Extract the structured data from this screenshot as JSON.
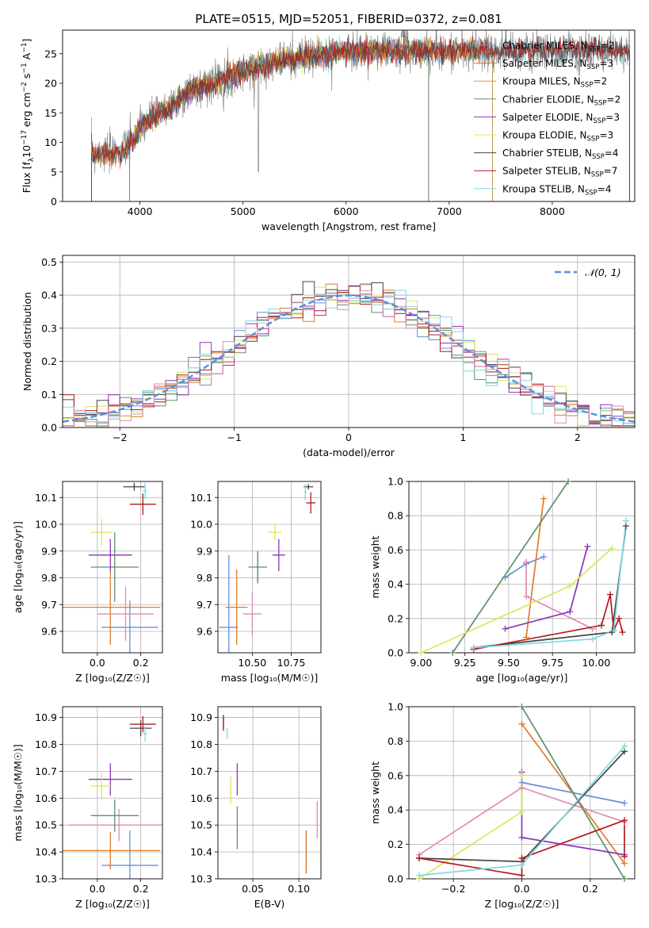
{
  "figure_title": "PLATE=0515, MJD=52051, FIBERID=0372, z=0.081",
  "colors": {
    "Chabrier MILES": "#6a8fd6",
    "Salpeter MILES": "#e07b2a",
    "Kroupa MILES": "#d99a3a",
    "Chabrier ELODIE": "#5f8f6a",
    "Salpeter ELODIE": "#8e35b5",
    "Kroupa ELODIE": "#d7e85a",
    "Chabrier STELIB": "#444444",
    "Salpeter STELIB": "#b01b1b",
    "Kroupa STELIB": "#7fd8df",
    "pink": "#e28ab8",
    "gaussian": "#5b8fd6",
    "grid": "#b0b0b0"
  },
  "chart_data": [
    {
      "id": "spectrum",
      "type": "line",
      "title": "PLATE=0515, MJD=52051, FIBERID=0372, z=0.081",
      "xlabel": "wavelength [Angstrom, rest frame]",
      "ylabel_main": "Flux [f",
      "ylabel_sub": "λ",
      "ylabel_tail": "10",
      "ylabel_sup1": "−17",
      "ylabel_mid": " erg cm",
      "ylabel_sup2": "−2",
      "ylabel_mid2": " s",
      "ylabel_sup3": "−1",
      "ylabel_mid3": " A",
      "ylabel_sup4": "−1",
      "ylabel_end": "]",
      "xlim": [
        3250,
        8800
      ],
      "ylim": [
        0,
        29
      ],
      "xticks": [
        4000,
        5000,
        6000,
        7000,
        8000
      ],
      "yticks": [
        0,
        5,
        10,
        15,
        20,
        25
      ],
      "grid": false,
      "legend_position": "top-right",
      "continuum_x": [
        3530,
        3700,
        3850,
        3950,
        4000,
        4100,
        4200,
        4300,
        4500,
        4700,
        4900,
        5000,
        5200,
        5400,
        5600,
        5800,
        6000,
        6200,
        6400,
        6600,
        6800,
        7000,
        7200,
        7400,
        7600,
        8000,
        8400,
        8750
      ],
      "continuum_y": [
        8,
        8,
        8.5,
        11,
        12.5,
        14,
        15,
        16,
        19,
        20,
        21.5,
        22,
        23,
        24,
        24.5,
        25,
        25.5,
        25.5,
        25.5,
        25.5,
        25.5,
        25.5,
        25.5,
        25.5,
        25.5,
        25.5,
        25.5,
        25.5
      ],
      "series": [
        {
          "name": "Chabrier MILES",
          "nssp": "2"
        },
        {
          "name": "Salpeter MILES",
          "nssp": "3"
        },
        {
          "name": "Kroupa MILES",
          "nssp": "2"
        },
        {
          "name": "Chabrier ELODIE",
          "nssp": "2"
        },
        {
          "name": "Salpeter ELODIE",
          "nssp": "3"
        },
        {
          "name": "Kroupa ELODIE",
          "nssp": "3"
        },
        {
          "name": "Chabrier STELIB",
          "nssp": "4"
        },
        {
          "name": "Salpeter STELIB",
          "nssp": "7"
        },
        {
          "name": "Kroupa STELIB",
          "nssp": "4"
        }
      ]
    },
    {
      "id": "residuals",
      "type": "line",
      "xlabel": "(data-model)/error",
      "ylabel": "Normed distribution",
      "xlim": [
        -2.5,
        2.5
      ],
      "ylim": [
        0,
        0.52
      ],
      "xticks": [
        -2,
        -1,
        0,
        1,
        2
      ],
      "yticks": [
        0.0,
        0.1,
        0.2,
        0.3,
        0.4,
        0.5
      ],
      "grid": true,
      "legend_position": "top-right",
      "gaussian_label": "𝒩(0, 1)",
      "bin_width": 0.1,
      "bin_start": -2.5
    },
    {
      "id": "age_vs_Z",
      "type": "scatter",
      "xlabel": "Z [log₁₀(Z/Z☉)]",
      "ylabel": "age  [log₁₀(age/yr)]",
      "xlim": [
        -0.16,
        0.3
      ],
      "ylim": [
        9.52,
        10.16
      ],
      "xticks": [
        0.0,
        0.2
      ],
      "yticks": [
        9.6,
        9.7,
        9.8,
        9.9,
        10.0,
        10.1
      ],
      "grid": true,
      "points": [
        {
          "s": "Chabrier MILES",
          "x": 0.15,
          "y": 9.615,
          "xe": 0.13,
          "ye": 0.1
        },
        {
          "s": "Salpeter MILES",
          "x": 0.06,
          "y": 9.69,
          "xe": 0.23,
          "ye": 0.14
        },
        {
          "s": "pink",
          "x": 0.13,
          "y": 9.665,
          "xe": 0.13,
          "ye": 0.1
        },
        {
          "s": "Chabrier ELODIE",
          "x": 0.08,
          "y": 9.84,
          "xe": 0.11,
          "ye": 0.13
        },
        {
          "s": "Salpeter ELODIE",
          "x": 0.06,
          "y": 9.885,
          "xe": 0.1,
          "ye": 0.06
        },
        {
          "s": "Kroupa ELODIE",
          "x": 0.02,
          "y": 9.97,
          "xe": 0.05,
          "ye": 0.05
        },
        {
          "s": "Chabrier STELIB",
          "x": 0.17,
          "y": 10.14,
          "xe": 0.05,
          "ye": 0.015
        },
        {
          "s": "Salpeter STELIB",
          "x": 0.21,
          "y": 10.075,
          "xe": 0.06,
          "ye": 0.04
        },
        {
          "s": "Kroupa STELIB",
          "x": 0.22,
          "y": 10.125,
          "xe": 0.01,
          "ye": 0.03
        }
      ]
    },
    {
      "id": "age_vs_mass",
      "type": "scatter",
      "xlabel": "mass [log₁₀(M/M☉)]",
      "ylabel": "",
      "xlim": [
        10.28,
        10.94
      ],
      "ylim": [
        9.52,
        10.16
      ],
      "xticks": [
        10.5,
        10.75
      ],
      "yticks": [
        9.6,
        9.7,
        9.8,
        9.9,
        10.0,
        10.1
      ],
      "grid": true,
      "points": [
        {
          "s": "Chabrier MILES",
          "x": 10.35,
          "y": 9.615,
          "xe": 0.06,
          "ye": 0.27
        },
        {
          "s": "Salpeter MILES",
          "x": 10.4,
          "y": 9.69,
          "xe": 0.07,
          "ye": 0.14
        },
        {
          "s": "pink",
          "x": 10.5,
          "y": 9.665,
          "xe": 0.06,
          "ye": 0.08
        },
        {
          "s": "Chabrier ELODIE",
          "x": 10.535,
          "y": 9.84,
          "xe": 0.06,
          "ye": 0.06
        },
        {
          "s": "Chabrier ELODIE",
          "x": 10.535,
          "y": 9.84,
          "xe": 0.0,
          "ye": 0.06
        },
        {
          "s": "Salpeter ELODIE",
          "x": 10.67,
          "y": 9.885,
          "xe": 0.04,
          "ye": 0.06
        },
        {
          "s": "Kroupa ELODIE",
          "x": 10.645,
          "y": 9.97,
          "xe": 0.04,
          "ye": 0.03
        },
        {
          "s": "Chabrier STELIB",
          "x": 10.86,
          "y": 10.14,
          "xe": 0.03,
          "ye": 0.01
        },
        {
          "s": "Salpeter STELIB",
          "x": 10.875,
          "y": 10.08,
          "xe": 0.03,
          "ye": 0.04
        },
        {
          "s": "Kroupa STELIB",
          "x": 10.84,
          "y": 10.12,
          "xe": 0.01,
          "ye": 0.03
        }
      ]
    },
    {
      "id": "mass_weight_vs_age",
      "type": "line",
      "xlabel": "age  [log₁₀(age/yr)]",
      "ylabel": "mass weight",
      "xlim": [
        8.93,
        10.22
      ],
      "ylim": [
        0,
        1
      ],
      "xticks": [
        9.0,
        9.25,
        9.5,
        9.75,
        10.0
      ],
      "yticks": [
        0.0,
        0.2,
        0.4,
        0.6,
        0.8,
        1.0
      ],
      "grid": true,
      "series": [
        {
          "s": "Chabrier MILES",
          "x": [
            9.48,
            9.6,
            9.7
          ],
          "y": [
            0.44,
            0.52,
            0.56
          ]
        },
        {
          "s": "Salpeter MILES",
          "x": [
            9.6,
            9.7
          ],
          "y": [
            0.09,
            0.9
          ]
        },
        {
          "s": "pink",
          "x": [
            9.6,
            9.6,
            9.98
          ],
          "y": [
            0.53,
            0.33,
            0.14
          ]
        },
        {
          "s": "Chabrier ELODIE",
          "x": [
            9.18,
            9.84
          ],
          "y": [
            0.0,
            1.0
          ]
        },
        {
          "s": "Salpeter ELODIE",
          "x": [
            9.48,
            9.85,
            9.95
          ],
          "y": [
            0.14,
            0.24,
            0.62
          ]
        },
        {
          "s": "Kroupa ELODIE",
          "x": [
            9.0,
            9.85,
            10.09
          ],
          "y": [
            0.0,
            0.39,
            0.61
          ]
        },
        {
          "s": "Chabrier STELIB",
          "x": [
            9.3,
            10.09,
            10.17
          ],
          "y": [
            0.03,
            0.12,
            0.74
          ]
        },
        {
          "s": "Salpeter STELIB",
          "x": [
            9.3,
            10.03,
            10.08,
            10.1,
            10.13,
            10.15
          ],
          "y": [
            0.02,
            0.16,
            0.34,
            0.13,
            0.2,
            0.12
          ]
        },
        {
          "s": "Kroupa STELIB",
          "x": [
            9.3,
            9.98,
            10.1,
            10.17
          ],
          "y": [
            0.03,
            0.08,
            0.13,
            0.77
          ]
        }
      ]
    },
    {
      "id": "mass_vs_Z",
      "type": "scatter",
      "xlabel": "Z [log₁₀(Z/Z☉)]",
      "ylabel": "mass [log₁₀(M/M☉)]",
      "xlim": [
        -0.16,
        0.3
      ],
      "ylim": [
        10.3,
        10.94
      ],
      "xticks": [
        0.0,
        0.2
      ],
      "yticks": [
        10.3,
        10.4,
        10.5,
        10.6,
        10.7,
        10.8,
        10.9
      ],
      "grid": true,
      "points": [
        {
          "s": "Chabrier MILES",
          "x": 0.15,
          "y": 10.35,
          "xe": 0.13,
          "ye": 0.13
        },
        {
          "s": "Salpeter MILES",
          "x": 0.06,
          "y": 10.405,
          "xe": 0.23,
          "ye": 0.07
        },
        {
          "s": "pink",
          "x": 0.1,
          "y": 10.5,
          "xe": 0.23,
          "ye": 0.06
        },
        {
          "s": "Chabrier ELODIE",
          "x": 0.08,
          "y": 10.535,
          "xe": 0.11,
          "ye": 0.06
        },
        {
          "s": "Salpeter ELODIE",
          "x": 0.06,
          "y": 10.67,
          "xe": 0.1,
          "ye": 0.06
        },
        {
          "s": "Kroupa ELODIE",
          "x": 0.02,
          "y": 10.645,
          "xe": 0.05,
          "ye": 0.05
        },
        {
          "s": "Chabrier STELIB",
          "x": 0.2,
          "y": 10.86,
          "xe": 0.05,
          "ye": 0.03
        },
        {
          "s": "Salpeter STELIB",
          "x": 0.21,
          "y": 10.875,
          "xe": 0.06,
          "ye": 0.03
        },
        {
          "s": "Kroupa STELIB",
          "x": 0.22,
          "y": 10.84,
          "xe": 0.01,
          "ye": 0.03
        }
      ]
    },
    {
      "id": "mass_vs_ebv",
      "type": "scatter",
      "xlabel": "E(B-V)",
      "ylabel": "",
      "xlim": [
        0.012,
        0.124
      ],
      "ylim": [
        10.3,
        10.94
      ],
      "xticks": [
        0.05,
        0.1
      ],
      "yticks": [
        10.3,
        10.4,
        10.5,
        10.6,
        10.7,
        10.8,
        10.9
      ],
      "grid": true,
      "points": [
        {
          "s": "Chabrier MILES",
          "x": 0.108,
          "y": 10.4,
          "xe": 0,
          "ye": 0.08
        },
        {
          "s": "Salpeter MILES",
          "x": 0.108,
          "y": 10.4,
          "xe": 0,
          "ye": 0.08
        },
        {
          "s": "pink",
          "x": 0.12,
          "y": 10.52,
          "xe": 0,
          "ye": 0.07
        },
        {
          "s": "Chabrier ELODIE",
          "x": 0.033,
          "y": 10.49,
          "xe": 0,
          "ye": 0.08
        },
        {
          "s": "Salpeter ELODIE",
          "x": 0.033,
          "y": 10.67,
          "xe": 0,
          "ye": 0.06
        },
        {
          "s": "Kroupa ELODIE",
          "x": 0.026,
          "y": 10.63,
          "xe": 0,
          "ye": 0.05
        },
        {
          "s": "Chabrier STELIB",
          "x": 0.018,
          "y": 10.88,
          "xe": 0,
          "ye": 0.02
        },
        {
          "s": "Salpeter STELIB",
          "x": 0.018,
          "y": 10.88,
          "xe": 0,
          "ye": 0.03
        },
        {
          "s": "Kroupa STELIB",
          "x": 0.022,
          "y": 10.84,
          "xe": 0,
          "ye": 0.02
        }
      ]
    },
    {
      "id": "mass_weight_vs_Z",
      "type": "line",
      "xlabel": "Z [log₁₀(Z/Z☉)]",
      "ylabel": "mass weight",
      "xlim": [
        -0.33,
        0.33
      ],
      "ylim": [
        0,
        1
      ],
      "xticks": [
        -0.2,
        0.0,
        0.2
      ],
      "yticks": [
        0.0,
        0.2,
        0.4,
        0.6,
        0.8,
        1.0
      ],
      "grid": true,
      "series": [
        {
          "s": "Chabrier MILES",
          "x": [
            0.0,
            0.3
          ],
          "y": [
            0.56,
            0.44
          ]
        },
        {
          "s": "Salpeter MILES",
          "x": [
            0.0,
            0.3
          ],
          "y": [
            0.9,
            0.09
          ]
        },
        {
          "s": "pink",
          "x": [
            -0.3,
            0.0,
            0.3
          ],
          "y": [
            0.14,
            0.53,
            0.33
          ]
        },
        {
          "s": "Chabrier ELODIE",
          "x": [
            0.0,
            0.3
          ],
          "y": [
            1.0,
            0.0
          ]
        },
        {
          "s": "Salpeter ELODIE",
          "x": [
            0.0,
            0.0,
            0.3
          ],
          "y": [
            0.62,
            0.24,
            0.14
          ]
        },
        {
          "s": "Kroupa ELODIE",
          "x": [
            -0.3,
            0.0,
            0.0
          ],
          "y": [
            0.0,
            0.39,
            0.61
          ]
        },
        {
          "s": "Chabrier STELIB",
          "x": [
            -0.3,
            0.0,
            0.3
          ],
          "y": [
            0.12,
            0.1,
            0.74
          ]
        },
        {
          "s": "Salpeter STELIB",
          "x": [
            -0.3,
            0.0,
            0.0,
            0.3,
            0.3
          ],
          "y": [
            0.12,
            0.02,
            0.12,
            0.34,
            0.13
          ]
        },
        {
          "s": "Kroupa STELIB",
          "x": [
            -0.3,
            0.0,
            0.3
          ],
          "y": [
            0.02,
            0.08,
            0.77
          ]
        }
      ]
    }
  ]
}
